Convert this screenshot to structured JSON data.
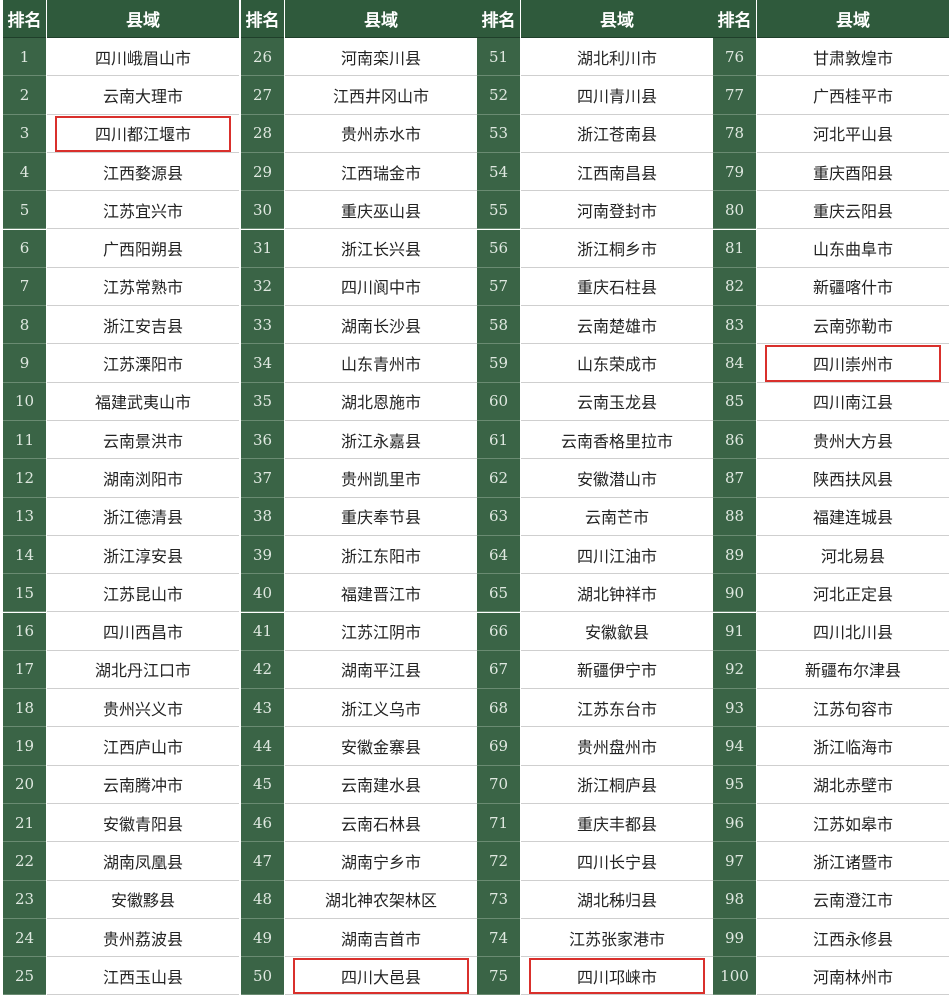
{
  "table": {
    "groups": [
      {
        "header": [
          "排名",
          "县域"
        ],
        "rows": [
          {
            "rank": 1,
            "name": "四川峨眉山市"
          },
          {
            "rank": 2,
            "name": "云南大理市"
          },
          {
            "rank": 3,
            "name": "四川都江堰市",
            "highlighted": true
          },
          {
            "rank": 4,
            "name": "江西婺源县"
          },
          {
            "rank": 5,
            "name": "江苏宜兴市"
          },
          {
            "rank": 6,
            "name": "广西阳朔县"
          },
          {
            "rank": 7,
            "name": "江苏常熟市"
          },
          {
            "rank": 8,
            "name": "浙江安吉县"
          },
          {
            "rank": 9,
            "name": "江苏溧阳市"
          },
          {
            "rank": 10,
            "name": "福建武夷山市"
          },
          {
            "rank": 11,
            "name": "云南景洪市"
          },
          {
            "rank": 12,
            "name": "湖南浏阳市"
          },
          {
            "rank": 13,
            "name": "浙江德清县"
          },
          {
            "rank": 14,
            "name": "浙江淳安县"
          },
          {
            "rank": 15,
            "name": "江苏昆山市"
          },
          {
            "rank": 16,
            "name": "四川西昌市"
          },
          {
            "rank": 17,
            "name": "湖北丹江口市"
          },
          {
            "rank": 18,
            "name": "贵州兴义市"
          },
          {
            "rank": 19,
            "name": "江西庐山市"
          },
          {
            "rank": 20,
            "name": "云南腾冲市"
          },
          {
            "rank": 21,
            "name": "安徽青阳县"
          },
          {
            "rank": 22,
            "name": "湖南凤凰县"
          },
          {
            "rank": 23,
            "name": "安徽黟县"
          },
          {
            "rank": 24,
            "name": "贵州荔波县"
          },
          {
            "rank": 25,
            "name": "江西玉山县"
          }
        ]
      },
      {
        "header": [
          "排名",
          "县域"
        ],
        "rows": [
          {
            "rank": 26,
            "name": "河南栾川县"
          },
          {
            "rank": 27,
            "name": "江西井冈山市"
          },
          {
            "rank": 28,
            "name": "贵州赤水市"
          },
          {
            "rank": 29,
            "name": "江西瑞金市"
          },
          {
            "rank": 30,
            "name": "重庆巫山县"
          },
          {
            "rank": 31,
            "name": "浙江长兴县"
          },
          {
            "rank": 32,
            "name": "四川阆中市"
          },
          {
            "rank": 33,
            "name": "湖南长沙县"
          },
          {
            "rank": 34,
            "name": "山东青州市"
          },
          {
            "rank": 35,
            "name": "湖北恩施市"
          },
          {
            "rank": 36,
            "name": "浙江永嘉县"
          },
          {
            "rank": 37,
            "name": "贵州凯里市"
          },
          {
            "rank": 38,
            "name": "重庆奉节县"
          },
          {
            "rank": 39,
            "name": "浙江东阳市"
          },
          {
            "rank": 40,
            "name": "福建晋江市"
          },
          {
            "rank": 41,
            "name": "江苏江阴市"
          },
          {
            "rank": 42,
            "name": "湖南平江县"
          },
          {
            "rank": 43,
            "name": "浙江义乌市"
          },
          {
            "rank": 44,
            "name": "安徽金寨县"
          },
          {
            "rank": 45,
            "name": "云南建水县"
          },
          {
            "rank": 46,
            "name": "云南石林县"
          },
          {
            "rank": 47,
            "name": "湖南宁乡市"
          },
          {
            "rank": 48,
            "name": "湖北神农架林区"
          },
          {
            "rank": 49,
            "name": "湖南吉首市"
          },
          {
            "rank": 50,
            "name": "四川大邑县",
            "highlighted": true
          }
        ]
      },
      {
        "header": [
          "排名",
          "县域"
        ],
        "rows": [
          {
            "rank": 51,
            "name": "湖北利川市"
          },
          {
            "rank": 52,
            "name": "四川青川县"
          },
          {
            "rank": 53,
            "name": "浙江苍南县"
          },
          {
            "rank": 54,
            "name": "江西南昌县"
          },
          {
            "rank": 55,
            "name": "河南登封市"
          },
          {
            "rank": 56,
            "name": "浙江桐乡市"
          },
          {
            "rank": 57,
            "name": "重庆石柱县"
          },
          {
            "rank": 58,
            "name": "云南楚雄市"
          },
          {
            "rank": 59,
            "name": "山东荣成市"
          },
          {
            "rank": 60,
            "name": "云南玉龙县"
          },
          {
            "rank": 61,
            "name": "云南香格里拉市"
          },
          {
            "rank": 62,
            "name": "安徽潜山市"
          },
          {
            "rank": 63,
            "name": "云南芒市"
          },
          {
            "rank": 64,
            "name": "四川江油市"
          },
          {
            "rank": 65,
            "name": "湖北钟祥市"
          },
          {
            "rank": 66,
            "name": "安徽歙县"
          },
          {
            "rank": 67,
            "name": "新疆伊宁市"
          },
          {
            "rank": 68,
            "name": "江苏东台市"
          },
          {
            "rank": 69,
            "name": "贵州盘州市"
          },
          {
            "rank": 70,
            "name": "浙江桐庐县"
          },
          {
            "rank": 71,
            "name": "重庆丰都县"
          },
          {
            "rank": 72,
            "name": "四川长宁县"
          },
          {
            "rank": 73,
            "name": "湖北秭归县"
          },
          {
            "rank": 74,
            "name": "江苏张家港市"
          },
          {
            "rank": 75,
            "name": "四川邛崃市",
            "highlighted": true
          }
        ]
      },
      {
        "header": [
          "排名",
          "县域"
        ],
        "rows": [
          {
            "rank": 76,
            "name": "甘肃敦煌市"
          },
          {
            "rank": 77,
            "name": "广西桂平市"
          },
          {
            "rank": 78,
            "name": "河北平山县"
          },
          {
            "rank": 79,
            "name": "重庆酉阳县"
          },
          {
            "rank": 80,
            "name": "重庆云阳县"
          },
          {
            "rank": 81,
            "name": "山东曲阜市"
          },
          {
            "rank": 82,
            "name": "新疆喀什市"
          },
          {
            "rank": 83,
            "name": "云南弥勒市"
          },
          {
            "rank": 84,
            "name": "四川崇州市",
            "highlighted": true
          },
          {
            "rank": 85,
            "name": "四川南江县"
          },
          {
            "rank": 86,
            "name": "贵州大方县"
          },
          {
            "rank": 87,
            "name": "陕西扶风县"
          },
          {
            "rank": 88,
            "name": "福建连城县"
          },
          {
            "rank": 89,
            "name": "河北易县"
          },
          {
            "rank": 90,
            "name": "河北正定县"
          },
          {
            "rank": 91,
            "name": "四川北川县"
          },
          {
            "rank": 92,
            "name": "新疆布尔津县"
          },
          {
            "rank": 93,
            "name": "江苏句容市"
          },
          {
            "rank": 94,
            "name": "浙江临海市"
          },
          {
            "rank": 95,
            "name": "湖北赤壁市"
          },
          {
            "rank": 96,
            "name": "江苏如皋市"
          },
          {
            "rank": 97,
            "name": "浙江诸暨市"
          },
          {
            "rank": 98,
            "name": "云南澄江市"
          },
          {
            "rank": 99,
            "name": "江西永修县"
          },
          {
            "rank": 100,
            "name": "河南林州市"
          }
        ]
      }
    ]
  }
}
